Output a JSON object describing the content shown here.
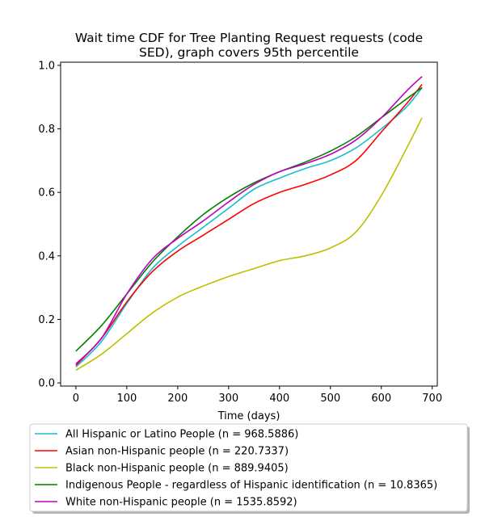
{
  "chart_data": {
    "type": "line",
    "title_lines": [
      "Wait time CDF for Tree Planting Request  requests (code",
      "SED), graph covers 95th percentile"
    ],
    "xlabel": "Time (days)",
    "ylabel": "",
    "xlim": [
      -30,
      710
    ],
    "ylim": [
      -0.01,
      1.01
    ],
    "xticks": [
      0,
      100,
      200,
      300,
      400,
      500,
      600,
      700
    ],
    "yticks": [
      0.0,
      0.2,
      0.4,
      0.6,
      0.8,
      1.0
    ],
    "ytick_labels": [
      "0.0",
      "0.2",
      "0.4",
      "0.6",
      "0.8",
      "1.0"
    ],
    "grid": false,
    "legend_position": "bottom, below axes",
    "series": [
      {
        "name": "All Hispanic or Latino People (n = 968.5886)",
        "color": "#17becf",
        "x": [
          0,
          50,
          100,
          150,
          200,
          250,
          300,
          350,
          400,
          450,
          500,
          550,
          600,
          650,
          680
        ],
        "y": [
          0.05,
          0.13,
          0.25,
          0.36,
          0.43,
          0.49,
          0.55,
          0.61,
          0.645,
          0.675,
          0.7,
          0.74,
          0.8,
          0.87,
          0.93
        ]
      },
      {
        "name": "Asian non-Hispanic people (n = 220.7337)",
        "color": "#ff0000",
        "x": [
          0,
          50,
          100,
          150,
          200,
          250,
          300,
          350,
          400,
          450,
          500,
          550,
          600,
          650,
          680
        ],
        "y": [
          0.055,
          0.14,
          0.255,
          0.35,
          0.415,
          0.465,
          0.515,
          0.565,
          0.6,
          0.625,
          0.655,
          0.7,
          0.79,
          0.88,
          0.94
        ]
      },
      {
        "name": "Black non-Hispanic people (n = 889.9405)",
        "color": "#bfbf00",
        "x": [
          0,
          50,
          100,
          150,
          200,
          250,
          300,
          350,
          400,
          450,
          500,
          550,
          600,
          650,
          680
        ],
        "y": [
          0.04,
          0.09,
          0.155,
          0.22,
          0.27,
          0.305,
          0.335,
          0.36,
          0.385,
          0.4,
          0.425,
          0.475,
          0.59,
          0.74,
          0.835
        ]
      },
      {
        "name": "Indigenous People - regardless of Hispanic identification (n = 10.8365)",
        "color": "#008000",
        "x": [
          0,
          50,
          100,
          150,
          200,
          250,
          300,
          350,
          400,
          450,
          500,
          550,
          600,
          650,
          680
        ],
        "y": [
          0.1,
          0.18,
          0.28,
          0.38,
          0.46,
          0.53,
          0.585,
          0.63,
          0.665,
          0.695,
          0.73,
          0.775,
          0.835,
          0.895,
          0.93
        ]
      },
      {
        "name": "White non-Hispanic people (n = 1535.8592)",
        "color": "#bf00bf",
        "x": [
          0,
          50,
          100,
          150,
          200,
          250,
          300,
          350,
          400,
          450,
          500,
          550,
          600,
          650,
          680
        ],
        "y": [
          0.06,
          0.14,
          0.28,
          0.39,
          0.455,
          0.51,
          0.57,
          0.625,
          0.665,
          0.69,
          0.72,
          0.765,
          0.835,
          0.92,
          0.965
        ]
      }
    ]
  }
}
